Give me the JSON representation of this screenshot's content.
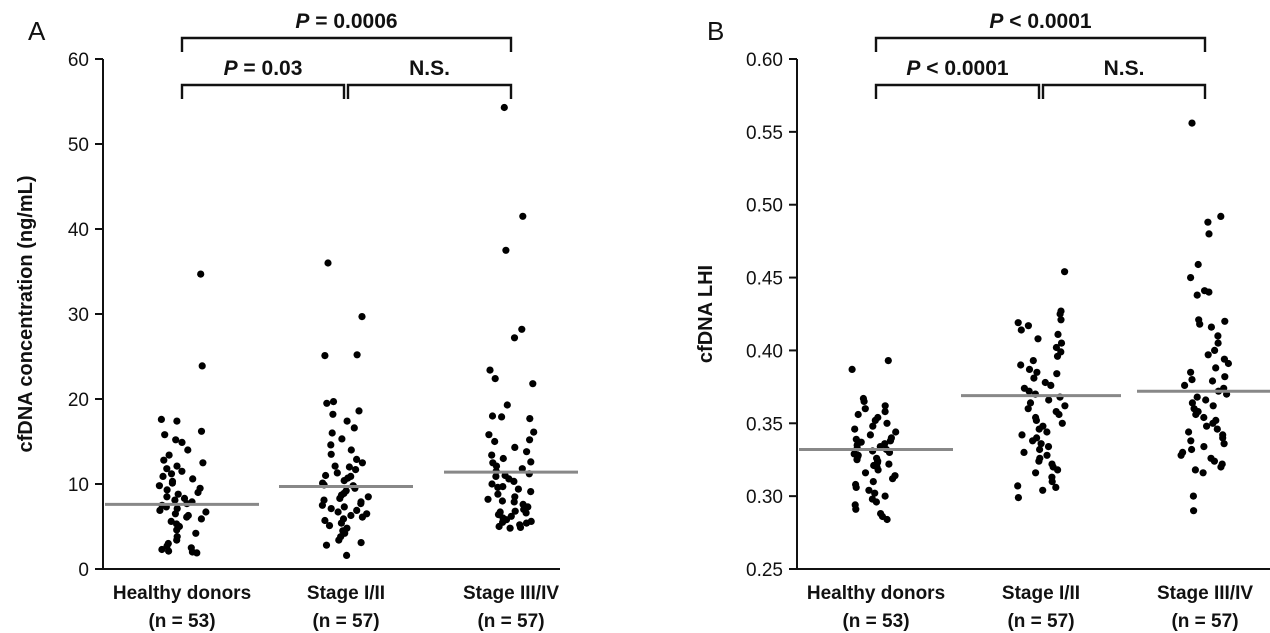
{
  "chart_data": [
    {
      "type": "scatter",
      "panel": "A",
      "ylabel": "cfDNA concentration (ng/mL)",
      "ylim": [
        0,
        60
      ],
      "yticks": [
        "0",
        "10",
        "20",
        "30",
        "40",
        "50",
        "60"
      ],
      "categories": [
        {
          "name": "Healthy donors",
          "n": "(n = 53)"
        },
        {
          "name": "Stage I/II",
          "n": "(n = 57)"
        },
        {
          "name": "Stage III/IV",
          "n": "(n = 57)"
        }
      ],
      "medians": [
        7.6,
        9.7,
        11.4
      ],
      "comparisons": [
        {
          "from": 0,
          "to": 1,
          "label_italic": "P",
          "label_rest": " = 0.03",
          "label": "P = 0.03"
        },
        {
          "from": 1,
          "to": 2,
          "label_italic": "",
          "label_rest": "N.S.",
          "label": "N.S."
        },
        {
          "from": 0,
          "to": 2,
          "label_italic": "P",
          "label_rest": " = 0.0006",
          "label": "P = 0.0006"
        }
      ],
      "points": [
        [
          34.7,
          23.9,
          17.6,
          17.4,
          16.2,
          15.8,
          15.2,
          14.9,
          14.0,
          13.4,
          12.8,
          12.5,
          12.1,
          11.8,
          11.5,
          11.2,
          10.9,
          10.6,
          10.3,
          10.1,
          9.8,
          9.5,
          9.3,
          9.0,
          8.8,
          8.5,
          8.3,
          8.1,
          7.9,
          7.7,
          7.5,
          7.3,
          7.1,
          6.9,
          6.7,
          6.5,
          6.3,
          6.1,
          5.9,
          5.6,
          5.3,
          5.0,
          4.6,
          4.2,
          3.8,
          3.4,
          3.0,
          2.7,
          2.5,
          2.3,
          2.1,
          2.0,
          1.9
        ],
        [
          36.0,
          29.7,
          25.2,
          25.1,
          19.7,
          19.5,
          18.6,
          18.2,
          17.4,
          16.6,
          16.0,
          15.3,
          14.6,
          14.0,
          13.5,
          12.9,
          12.5,
          12.1,
          11.7,
          11.3,
          11.0,
          10.7,
          10.4,
          10.1,
          9.8,
          9.5,
          9.2,
          8.9,
          8.7,
          8.5,
          8.3,
          8.1,
          7.9,
          7.7,
          7.5,
          7.3,
          7.1,
          6.9,
          6.7,
          6.5,
          6.3,
          6.1,
          5.9,
          5.7,
          5.4,
          5.1,
          4.8,
          4.5,
          4.2,
          3.8,
          3.4,
          3.1,
          2.8,
          12.0,
          10.9,
          9.9,
          1.6
        ],
        [
          54.3,
          41.5,
          37.5,
          28.2,
          27.2,
          23.4,
          22.4,
          21.8,
          19.3,
          18.0,
          17.9,
          17.7,
          16.1,
          15.8,
          15.2,
          15.0,
          14.3,
          13.8,
          13.4,
          13.0,
          12.5,
          12.1,
          11.8,
          11.5,
          11.2,
          10.9,
          10.6,
          10.3,
          10.0,
          9.7,
          9.4,
          9.1,
          8.8,
          8.5,
          8.2,
          7.9,
          7.6,
          7.3,
          7.0,
          6.8,
          6.6,
          6.4,
          6.2,
          6.0,
          5.8,
          5.6,
          5.4,
          5.2,
          5.0,
          4.9,
          4.8,
          12.6,
          11.0,
          9.6,
          8.0,
          6.7,
          5.5
        ]
      ]
    },
    {
      "type": "scatter",
      "panel": "B",
      "ylabel": "cfDNA LHI",
      "ylim": [
        0.25,
        0.6
      ],
      "yticks": [
        "0.25",
        "0.30",
        "0.35",
        "0.40",
        "0.45",
        "0.50",
        "0.55",
        "0.60"
      ],
      "categories": [
        {
          "name": "Healthy donors",
          "n": "(n = 53)"
        },
        {
          "name": "Stage I/II",
          "n": "(n = 57)"
        },
        {
          "name": "Stage III/IV",
          "n": "(n = 57)"
        }
      ],
      "medians": [
        0.332,
        0.369,
        0.372
      ],
      "comparisons": [
        {
          "from": 0,
          "to": 1,
          "label_italic": "P",
          "label_rest": " < 0.0001",
          "label": "P < 0.0001"
        },
        {
          "from": 1,
          "to": 2,
          "label_italic": "",
          "label_rest": "N.S.",
          "label": "N.S."
        },
        {
          "from": 0,
          "to": 2,
          "label_italic": "P",
          "label_rest": " < 0.0001",
          "label": "P < 0.0001"
        }
      ],
      "points": [
        [
          0.393,
          0.387,
          0.367,
          0.365,
          0.362,
          0.36,
          0.358,
          0.356,
          0.354,
          0.352,
          0.35,
          0.348,
          0.346,
          0.344,
          0.342,
          0.34,
          0.339,
          0.338,
          0.337,
          0.336,
          0.335,
          0.334,
          0.333,
          0.332,
          0.331,
          0.33,
          0.329,
          0.328,
          0.327,
          0.326,
          0.325,
          0.324,
          0.323,
          0.322,
          0.321,
          0.32,
          0.318,
          0.316,
          0.314,
          0.312,
          0.31,
          0.308,
          0.306,
          0.304,
          0.302,
          0.3,
          0.298,
          0.296,
          0.294,
          0.291,
          0.288,
          0.286,
          0.284
        ],
        [
          0.454,
          0.427,
          0.425,
          0.421,
          0.419,
          0.417,
          0.414,
          0.411,
          0.408,
          0.405,
          0.402,
          0.399,
          0.396,
          0.393,
          0.39,
          0.387,
          0.384,
          0.381,
          0.378,
          0.376,
          0.374,
          0.372,
          0.37,
          0.368,
          0.366,
          0.364,
          0.362,
          0.36,
          0.358,
          0.356,
          0.354,
          0.352,
          0.35,
          0.348,
          0.346,
          0.344,
          0.342,
          0.34,
          0.338,
          0.336,
          0.334,
          0.332,
          0.33,
          0.328,
          0.326,
          0.324,
          0.322,
          0.32,
          0.318,
          0.316,
          0.313,
          0.31,
          0.307,
          0.306,
          0.304,
          0.299,
          0.385
        ],
        [
          0.556,
          0.492,
          0.488,
          0.48,
          0.459,
          0.45,
          0.441,
          0.44,
          0.438,
          0.421,
          0.42,
          0.418,
          0.416,
          0.41,
          0.405,
          0.4,
          0.397,
          0.394,
          0.391,
          0.388,
          0.385,
          0.382,
          0.379,
          0.376,
          0.374,
          0.372,
          0.37,
          0.368,
          0.366,
          0.364,
          0.362,
          0.36,
          0.358,
          0.356,
          0.354,
          0.352,
          0.35,
          0.348,
          0.346,
          0.344,
          0.342,
          0.34,
          0.338,
          0.336,
          0.334,
          0.332,
          0.33,
          0.328,
          0.326,
          0.324,
          0.322,
          0.32,
          0.318,
          0.316,
          0.3,
          0.29,
          0.38
        ]
      ]
    }
  ]
}
